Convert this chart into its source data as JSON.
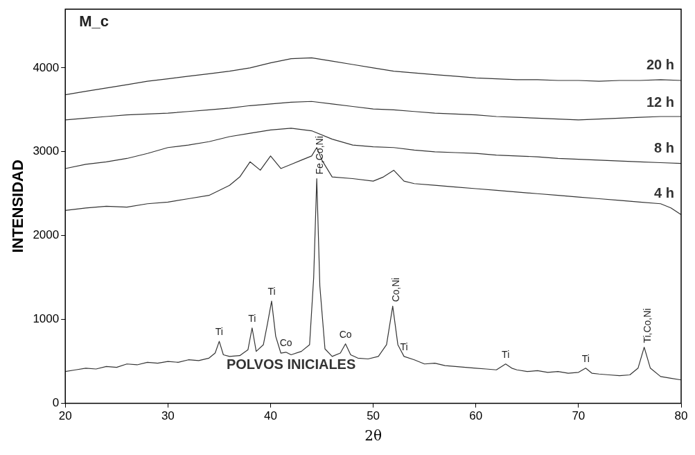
{
  "chart_data": {
    "type": "line",
    "xlabel": "2θ",
    "ylabel": "INTENSIDAD",
    "xlim": [
      20,
      80
    ],
    "xticks": [
      20,
      30,
      40,
      50,
      60,
      70,
      80
    ],
    "ylim": [
      0,
      4700
    ],
    "yticks": [
      0,
      1000,
      2000,
      3000,
      4000
    ],
    "grid": false,
    "legend": false,
    "marker": "none",
    "line_style": "solid",
    "series": [
      {
        "name": "POLVOS INICIALES",
        "color": "#333333",
        "x": [
          20,
          21,
          22,
          23,
          24,
          25,
          26,
          27,
          28,
          29,
          30,
          31,
          32,
          33,
          34,
          34.6,
          35,
          35.4,
          36,
          37,
          37.8,
          38.2,
          38.6,
          39.3,
          39.7,
          40.1,
          40.5,
          41,
          41.5,
          42,
          43,
          43.8,
          44.2,
          44.5,
          44.8,
          45.3,
          46,
          46.8,
          47.3,
          47.8,
          48.5,
          49.5,
          50.5,
          51.3,
          51.9,
          52.4,
          53,
          54,
          55,
          56,
          57,
          58,
          59,
          60,
          61,
          62,
          62.9,
          63.5,
          64,
          65,
          66,
          67,
          68,
          69,
          70,
          70.7,
          71.3,
          72,
          73,
          74,
          75,
          75.8,
          76.4,
          77,
          78,
          79,
          80
        ],
        "values": [
          380,
          400,
          420,
          410,
          440,
          430,
          470,
          460,
          490,
          480,
          500,
          490,
          520,
          510,
          540,
          600,
          740,
          580,
          560,
          570,
          640,
          900,
          620,
          700,
          950,
          1220,
          800,
          600,
          610,
          580,
          620,
          700,
          1500,
          2680,
          1400,
          650,
          560,
          600,
          710,
          580,
          540,
          530,
          560,
          700,
          1160,
          700,
          560,
          520,
          470,
          480,
          450,
          440,
          430,
          420,
          410,
          400,
          470,
          420,
          400,
          380,
          390,
          370,
          380,
          360,
          370,
          420,
          360,
          350,
          340,
          330,
          340,
          420,
          670,
          420,
          320,
          300,
          280
        ]
      },
      {
        "name": "4 h",
        "color": "#333333",
        "x": [
          20,
          22,
          24,
          26,
          28,
          30,
          32,
          34,
          36,
          37,
          38,
          39,
          40,
          41,
          42,
          43,
          44,
          44.5,
          45,
          46,
          48,
          50,
          51,
          52,
          53,
          54,
          56,
          58,
          60,
          62,
          64,
          66,
          68,
          70,
          72,
          74,
          76,
          78,
          79,
          80
        ],
        "values": [
          2300,
          2330,
          2350,
          2340,
          2380,
          2400,
          2440,
          2480,
          2600,
          2700,
          2880,
          2780,
          2950,
          2800,
          2850,
          2900,
          2950,
          3050,
          2900,
          2700,
          2680,
          2650,
          2700,
          2780,
          2650,
          2620,
          2600,
          2580,
          2560,
          2540,
          2520,
          2500,
          2480,
          2460,
          2440,
          2420,
          2400,
          2380,
          2330,
          2250
        ]
      },
      {
        "name": "8 h",
        "color": "#333333",
        "x": [
          20,
          22,
          24,
          26,
          28,
          30,
          32,
          34,
          36,
          38,
          40,
          42,
          44,
          46,
          48,
          50,
          52,
          54,
          56,
          58,
          60,
          62,
          64,
          66,
          68,
          70,
          72,
          74,
          76,
          78,
          80
        ],
        "values": [
          2800,
          2850,
          2880,
          2920,
          2980,
          3050,
          3080,
          3120,
          3180,
          3220,
          3260,
          3280,
          3250,
          3150,
          3080,
          3060,
          3050,
          3020,
          3000,
          2990,
          2980,
          2960,
          2950,
          2940,
          2920,
          2910,
          2900,
          2890,
          2880,
          2870,
          2860
        ]
      },
      {
        "name": "12 h",
        "color": "#333333",
        "x": [
          20,
          22,
          24,
          26,
          28,
          30,
          32,
          34,
          36,
          38,
          40,
          42,
          44,
          46,
          48,
          50,
          52,
          54,
          56,
          58,
          60,
          62,
          64,
          66,
          68,
          70,
          72,
          74,
          76,
          78,
          80
        ],
        "values": [
          3380,
          3400,
          3420,
          3440,
          3450,
          3460,
          3480,
          3500,
          3520,
          3550,
          3570,
          3590,
          3600,
          3570,
          3540,
          3510,
          3500,
          3480,
          3460,
          3450,
          3440,
          3420,
          3410,
          3400,
          3390,
          3380,
          3390,
          3400,
          3410,
          3420,
          3420
        ]
      },
      {
        "name": "20 h",
        "color": "#333333",
        "x": [
          20,
          22,
          24,
          26,
          28,
          30,
          32,
          34,
          36,
          38,
          40,
          42,
          44,
          46,
          48,
          50,
          52,
          54,
          56,
          58,
          60,
          62,
          64,
          66,
          68,
          70,
          72,
          74,
          76,
          78,
          80
        ],
        "values": [
          3680,
          3720,
          3760,
          3800,
          3840,
          3870,
          3900,
          3930,
          3960,
          4000,
          4060,
          4110,
          4120,
          4080,
          4040,
          4000,
          3960,
          3940,
          3920,
          3900,
          3880,
          3870,
          3860,
          3860,
          3850,
          3850,
          3840,
          3850,
          3850,
          3860,
          3850
        ]
      }
    ],
    "annotations": [
      "M_c",
      {
        "text": "Ti",
        "x": 35,
        "y": 740
      },
      {
        "text": "Ti",
        "x": 38.2,
        "y": 900
      },
      {
        "text": "Ti",
        "x": 40.1,
        "y": 1220
      },
      {
        "text": "Co",
        "x": 41.5,
        "y": 610
      },
      {
        "text": "Fe,Co,Ni",
        "x": 44.5,
        "y": 2680
      },
      {
        "text": "Co",
        "x": 47.3,
        "y": 710
      },
      {
        "text": "Co,Ni",
        "x": 51.9,
        "y": 1160
      },
      {
        "text": "Ti",
        "x": 53,
        "y": 560
      },
      {
        "text": "Ti",
        "x": 62.9,
        "y": 470
      },
      {
        "text": "Ti",
        "x": 70.7,
        "y": 420
      },
      {
        "text": "Ti,Co,Ni",
        "x": 76.4,
        "y": 670
      }
    ]
  }
}
